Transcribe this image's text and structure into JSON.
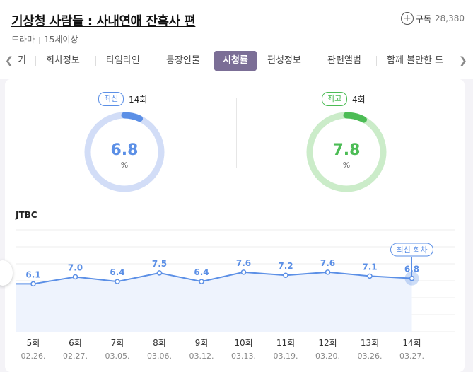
{
  "header": {
    "title": "기상청 사람들 : 사내연애 잔혹사 편",
    "genre": "드라마",
    "rating": "15세이상",
    "subscribe_label": "구독",
    "subscribe_count": "28,380"
  },
  "tabs": [
    {
      "label": "기",
      "active": false
    },
    {
      "label": "회차정보",
      "active": false
    },
    {
      "label": "타임라인",
      "active": false
    },
    {
      "label": "등장인물",
      "active": false
    },
    {
      "label": "시청률",
      "active": true
    },
    {
      "label": "편성정보",
      "active": false
    },
    {
      "label": "관련앨범",
      "active": false
    },
    {
      "label": "함께 볼만한 드",
      "active": false
    }
  ],
  "summary": {
    "latest": {
      "badge": "최신",
      "episode": "14회",
      "value": "6.8",
      "unit": "%",
      "fraction": 0.068,
      "color": "#5b8fe6",
      "track": "#d2ddf7"
    },
    "best": {
      "badge": "최고",
      "episode": "4회",
      "value": "7.8",
      "unit": "%",
      "fraction": 0.078,
      "color": "#4cbc55",
      "track": "#cbecc9"
    }
  },
  "network": "JTBC",
  "latest_episode_tag": "최신 회차",
  "chart_data": {
    "type": "line",
    "x": [
      "5회",
      "6회",
      "7회",
      "8회",
      "9회",
      "10회",
      "11회",
      "12회",
      "13회",
      "14회"
    ],
    "dates": [
      "02.26.",
      "02.27.",
      "03.05.",
      "03.06.",
      "03.12.",
      "03.13.",
      "03.19.",
      "03.20.",
      "03.26.",
      "03.27."
    ],
    "series": [
      {
        "values": [
          6.1,
          7.0,
          6.4,
          7.5,
          6.4,
          7.6,
          7.2,
          7.6,
          7.1,
          6.8
        ]
      }
    ],
    "value_labels": [
      "6.1",
      "7.0",
      "6.4",
      "7.5",
      "6.4",
      "7.6",
      "7.2",
      "7.6",
      "7.1",
      "6.8"
    ],
    "ylim": [
      0,
      13
    ],
    "grid": true,
    "line_color": "#5b8fe6",
    "area_color": "#eef3fd"
  }
}
